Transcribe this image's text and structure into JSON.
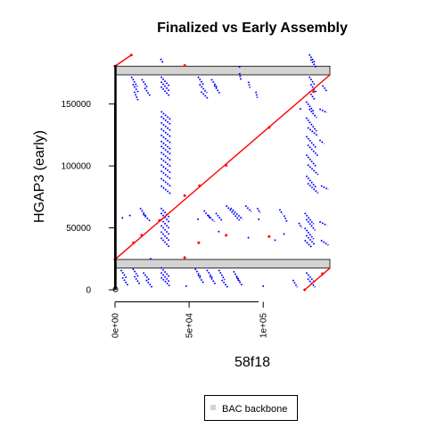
{
  "chart_data": {
    "type": "scatter",
    "title": "Finalized vs Early Assembly",
    "xlabel": "58f18",
    "ylabel": "HGAP3 (early)",
    "xlim": [
      0,
      145000
    ],
    "ylim": [
      0,
      185000
    ],
    "x_ticks": [
      {
        "value": 0,
        "label": "0e+00"
      },
      {
        "value": 50000,
        "label": "5e+04"
      },
      {
        "value": 100000,
        "label": "1e+05"
      }
    ],
    "y_ticks": [
      {
        "value": 0,
        "label": "0"
      },
      {
        "value": 50000,
        "label": "50000"
      },
      {
        "value": 100000,
        "label": "100000"
      },
      {
        "value": 150000,
        "label": "150000"
      }
    ],
    "legend": {
      "position": "bottom-right",
      "entries": [
        {
          "label": "BAC backbone",
          "color": "#d3d3d3"
        }
      ]
    },
    "backbone_bands": [
      [
        17500,
        24500
      ],
      [
        173500,
        180500
      ]
    ],
    "colors": {
      "forward": "#ff0000",
      "reverse": "#0000ff",
      "backbone": "#d3d3d3"
    },
    "forward_segments": [
      [
        [
          0,
          24500
        ],
        [
          145000,
          173500
        ]
      ],
      [
        [
          0,
          180500
        ],
        [
          11000,
          189500
        ]
      ],
      [
        [
          128000,
          0
        ],
        [
          145000,
          17500
        ]
      ]
    ],
    "forward_points": [
      [
        0,
        24500
      ],
      [
        12500,
        38000
      ],
      [
        18000,
        44000
      ],
      [
        30000,
        56000
      ],
      [
        47000,
        76000
      ],
      [
        57000,
        84000
      ],
      [
        75000,
        100500
      ],
      [
        104000,
        131000
      ],
      [
        134000,
        160000
      ],
      [
        47000,
        26000
      ],
      [
        56500,
        38000
      ],
      [
        75000,
        44000
      ],
      [
        104000,
        43000
      ],
      [
        47000,
        181000
      ],
      [
        11000,
        189500
      ],
      [
        0,
        180500
      ],
      [
        128000,
        0
      ],
      [
        140000,
        13000
      ]
    ],
    "reverse_segments": [
      [
        [
          31000,
          66000
        ],
        [
          37000,
          58000
        ]
      ],
      [
        [
          31000,
          62000
        ],
        [
          37000,
          54000
        ]
      ],
      [
        [
          31000,
          57000
        ],
        [
          37000,
          49000
        ]
      ],
      [
        [
          31000,
          52000
        ],
        [
          37000,
          44000
        ]
      ],
      [
        [
          31000,
          47000
        ],
        [
          37000,
          39000
        ]
      ],
      [
        [
          31000,
          42000
        ],
        [
          37000,
          34000
        ]
      ],
      [
        [
          31000,
          18000
        ],
        [
          37000,
          10000
        ]
      ],
      [
        [
          31000,
          14000
        ],
        [
          37000,
          6000
        ]
      ],
      [
        [
          31000,
          10000
        ],
        [
          37000,
          3000
        ]
      ],
      [
        [
          31000,
          172000
        ],
        [
          37000,
          164000
        ]
      ],
      [
        [
          31000,
          168000
        ],
        [
          37000,
          160000
        ]
      ],
      [
        [
          31000,
          164000
        ],
        [
          37000,
          156000
        ]
      ],
      [
        [
          31000,
          144000
        ],
        [
          38000,
          137000
        ]
      ],
      [
        [
          31000,
          140000
        ],
        [
          38000,
          133000
        ]
      ],
      [
        [
          31000,
          135000
        ],
        [
          38000,
          128000
        ]
      ],
      [
        [
          31000,
          130000
        ],
        [
          38000,
          123000
        ]
      ],
      [
        [
          31000,
          125000
        ],
        [
          38000,
          118000
        ]
      ],
      [
        [
          31000,
          120000
        ],
        [
          38000,
          113000
        ]
      ],
      [
        [
          31000,
          116000
        ],
        [
          38000,
          109000
        ]
      ],
      [
        [
          31000,
          111000
        ],
        [
          38000,
          104000
        ]
      ],
      [
        [
          31000,
          106000
        ],
        [
          38000,
          99000
        ]
      ],
      [
        [
          31000,
          101000
        ],
        [
          38000,
          94000
        ]
      ],
      [
        [
          31000,
          96000
        ],
        [
          38000,
          89000
        ]
      ],
      [
        [
          31000,
          90000
        ],
        [
          38000,
          83000
        ]
      ],
      [
        [
          31000,
          84000
        ],
        [
          38000,
          77000
        ]
      ],
      [
        [
          11000,
          172000
        ],
        [
          15000,
          164000
        ]
      ],
      [
        [
          12000,
          166000
        ],
        [
          16000,
          159000
        ]
      ],
      [
        [
          13000,
          160000
        ],
        [
          15500,
          153000
        ]
      ],
      [
        [
          18000,
          170000
        ],
        [
          22000,
          163000
        ]
      ],
      [
        [
          20000,
          163000
        ],
        [
          24000,
          156000
        ]
      ],
      [
        [
          4000,
          16000
        ],
        [
          8000,
          9000
        ]
      ],
      [
        [
          5000,
          10000
        ],
        [
          9000,
          3000
        ]
      ],
      [
        [
          12000,
          17000
        ],
        [
          16000,
          10000
        ]
      ],
      [
        [
          13000,
          11000
        ],
        [
          17000,
          4000
        ]
      ],
      [
        [
          19000,
          14000
        ],
        [
          23000,
          8000
        ]
      ],
      [
        [
          21000,
          8000
        ],
        [
          25000,
          2000
        ]
      ],
      [
        [
          17000,
          66000
        ],
        [
          21000,
          59000
        ]
      ],
      [
        [
          19000,
          61000
        ],
        [
          24000,
          55000
        ]
      ],
      [
        [
          56000,
          172000
        ],
        [
          60000,
          165000
        ]
      ],
      [
        [
          57000,
          166000
        ],
        [
          62000,
          159000
        ]
      ],
      [
        [
          58000,
          160000
        ],
        [
          63000,
          154000
        ]
      ],
      [
        [
          65000,
          170000
        ],
        [
          69000,
          163000
        ]
      ],
      [
        [
          67000,
          165000
        ],
        [
          71000,
          158000
        ]
      ],
      [
        [
          54000,
          17000
        ],
        [
          58000,
          10000
        ]
      ],
      [
        [
          56000,
          12000
        ],
        [
          60000,
          5000
        ]
      ],
      [
        [
          62000,
          16000
        ],
        [
          66000,
          9000
        ]
      ],
      [
        [
          64000,
          11000
        ],
        [
          68000,
          4000
        ]
      ],
      [
        [
          70000,
          16000
        ],
        [
          74000,
          8000
        ]
      ],
      [
        [
          80000,
          15000
        ],
        [
          84000,
          7000
        ]
      ],
      [
        [
          82000,
          10000
        ],
        [
          86000,
          3000
        ]
      ],
      [
        [
          72000,
          8000
        ],
        [
          76000,
          2000
        ]
      ],
      [
        [
          60000,
          64000
        ],
        [
          64000,
          58000
        ]
      ],
      [
        [
          63000,
          60000
        ],
        [
          67000,
          55000
        ]
      ],
      [
        [
          75000,
          68000
        ],
        [
          84000,
          56000
        ]
      ],
      [
        [
          78000,
          66000
        ],
        [
          86000,
          57000
        ]
      ],
      [
        [
          68000,
          62000
        ],
        [
          72000,
          56000
        ]
      ],
      [
        [
          88000,
          68000
        ],
        [
          92000,
          63000
        ]
      ],
      [
        [
          96000,
          66000
        ],
        [
          98000,
          62000
        ]
      ],
      [
        [
          84000,
          175000
        ],
        [
          85000,
          169000
        ]
      ],
      [
        [
          90000,
          168000
        ],
        [
          91000,
          163000
        ]
      ],
      [
        [
          95000,
          160000
        ],
        [
          96000,
          155000
        ]
      ],
      [
        [
          131000,
          190000
        ],
        [
          135000,
          183000
        ]
      ],
      [
        [
          132000,
          186000
        ],
        [
          136000,
          179000
        ]
      ],
      [
        [
          131000,
          172000
        ],
        [
          135000,
          165000
        ]
      ],
      [
        [
          132000,
          166000
        ],
        [
          136000,
          159000
        ]
      ],
      [
        [
          131000,
          160000
        ],
        [
          135000,
          153000
        ]
      ],
      [
        [
          129000,
          152000
        ],
        [
          134000,
          144000
        ]
      ],
      [
        [
          131000,
          146000
        ],
        [
          136000,
          139000
        ]
      ],
      [
        [
          129000,
          139000
        ],
        [
          136000,
          128000
        ]
      ],
      [
        [
          130000,
          131000
        ],
        [
          137000,
          124000
        ]
      ],
      [
        [
          129000,
          124000
        ],
        [
          136000,
          114000
        ]
      ],
      [
        [
          130000,
          117000
        ],
        [
          137000,
          108000
        ]
      ],
      [
        [
          129000,
          109000
        ],
        [
          136000,
          99000
        ]
      ],
      [
        [
          130000,
          101000
        ],
        [
          137000,
          93000
        ]
      ],
      [
        [
          129000,
          92000
        ],
        [
          136000,
          82000
        ]
      ],
      [
        [
          130000,
          86000
        ],
        [
          137000,
          78000
        ]
      ],
      [
        [
          128000,
          62000
        ],
        [
          134000,
          53000
        ]
      ],
      [
        [
          129000,
          57000
        ],
        [
          135000,
          48000
        ]
      ],
      [
        [
          128000,
          50000
        ],
        [
          134000,
          41000
        ]
      ],
      [
        [
          129000,
          44000
        ],
        [
          135000,
          36000
        ]
      ],
      [
        [
          128000,
          40000
        ],
        [
          133000,
          34000
        ]
      ],
      [
        [
          129000,
          14000
        ],
        [
          134000,
          7000
        ]
      ],
      [
        [
          130000,
          9000
        ],
        [
          135000,
          2000
        ]
      ],
      [
        [
          120000,
          8000
        ],
        [
          123000,
          2000
        ]
      ],
      [
        [
          114000,
          60000
        ],
        [
          116000,
          55000
        ]
      ],
      [
        [
          111000,
          65000
        ],
        [
          113000,
          61000
        ]
      ],
      [
        [
          124000,
          54000
        ],
        [
          126000,
          50000
        ]
      ],
      [
        [
          138000,
          146000
        ],
        [
          143000,
          143000
        ]
      ],
      [
        [
          138000,
          121000
        ],
        [
          141000,
          118000
        ]
      ],
      [
        [
          139000,
          84000
        ],
        [
          144000,
          81000
        ]
      ],
      [
        [
          138000,
          55000
        ],
        [
          143000,
          52000
        ]
      ],
      [
        [
          139000,
          40000
        ],
        [
          144000,
          36000
        ]
      ],
      [
        [
          140000,
          165000
        ],
        [
          143000,
          160000
        ]
      ]
    ],
    "reverse_points": [
      [
        31000,
        186000
      ],
      [
        32000,
        184000
      ],
      [
        5000,
        58000
      ],
      [
        10000,
        60000
      ],
      [
        56000,
        57000
      ],
      [
        84000,
        180000
      ],
      [
        70000,
        47000
      ],
      [
        90000,
        42000
      ],
      [
        125000,
        146000
      ],
      [
        97000,
        57000
      ],
      [
        108000,
        40000
      ],
      [
        114000,
        45000
      ],
      [
        24000,
        25000
      ],
      [
        48000,
        3000
      ],
      [
        100000,
        3000
      ]
    ]
  }
}
